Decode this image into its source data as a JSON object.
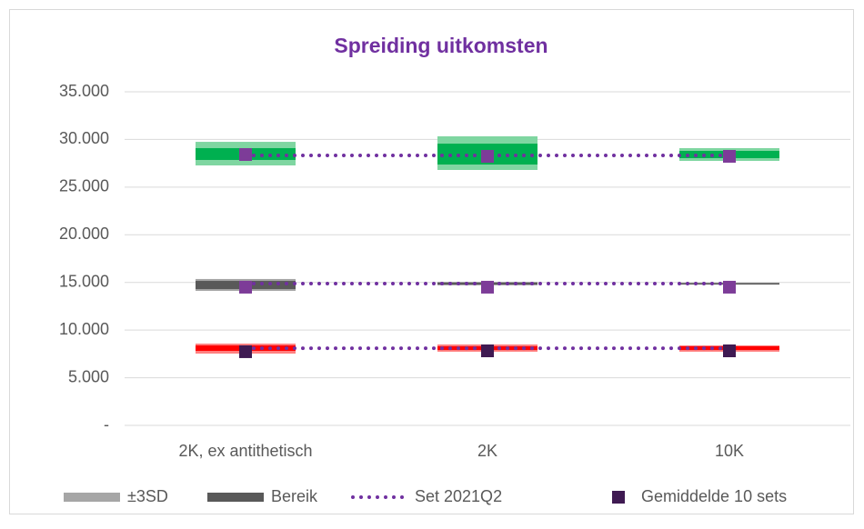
{
  "chart_data": {
    "type": "range",
    "title": "Spreiding uitkomsten",
    "categories": [
      "2K, ex antithetisch",
      "2K",
      "10K"
    ],
    "ylim": [
      0,
      35000
    ],
    "yticks": [
      {
        "value": 0,
        "label": "-"
      },
      {
        "value": 5000,
        "label": "5.000"
      },
      {
        "value": 10000,
        "label": "10.000"
      },
      {
        "value": 15000,
        "label": "15.000"
      },
      {
        "value": 20000,
        "label": "20.000"
      },
      {
        "value": 25000,
        "label": "25.000"
      },
      {
        "value": 30000,
        "label": "30.000"
      },
      {
        "value": 35000,
        "label": "35.000"
      }
    ],
    "grid": true,
    "legend": [
      {
        "name": "±3SD",
        "color": "#a6a6a6"
      },
      {
        "name": "Bereik",
        "color": "#595959"
      },
      {
        "name": "Set 2021Q2",
        "color": "#7030a0"
      },
      {
        "name": "Gemiddelde 10 sets",
        "color": "#3f1a52"
      }
    ],
    "groups": [
      {
        "sd_color": "#7fd6a1",
        "range_color": "#00b050",
        "set_color": "#7030a0",
        "mean_color": "#7d3c98",
        "sd_low": [
          27275,
          26800,
          27750
        ],
        "sd_high": [
          29750,
          30330,
          29090
        ],
        "range_low": [
          27850,
          27370,
          28040
        ],
        "range_high": [
          29090,
          29560,
          28800
        ],
        "set": [
          28325,
          28325,
          28325
        ],
        "mean": [
          28420,
          28230,
          28230
        ]
      },
      {
        "sd_color": "#a6a6a6",
        "range_color": "#595959",
        "set_color": "#7030a0",
        "mean_color": "#7d3c98",
        "sd_low": [
          14110,
          14690,
          14780
        ],
        "sd_high": [
          15360,
          15070,
          14970
        ],
        "range_low": [
          14300,
          14780,
          14830
        ],
        "range_high": [
          15160,
          14970,
          14920
        ],
        "set": [
          14880,
          14880,
          14880
        ],
        "mean": [
          14500,
          14500,
          14500
        ]
      },
      {
        "sd_color": "#ff7f7f",
        "range_color": "#ff0000",
        "set_color": "#7030a0",
        "mean_color": "#3f1a52",
        "sd_low": [
          7530,
          7730,
          7730
        ],
        "sd_high": [
          8580,
          8490,
          8390
        ],
        "range_low": [
          7820,
          7910,
          7910
        ],
        "range_high": [
          8390,
          8300,
          8300
        ],
        "set": [
          8100,
          8100,
          8100
        ],
        "mean": [
          7730,
          7820,
          7820
        ]
      }
    ]
  }
}
